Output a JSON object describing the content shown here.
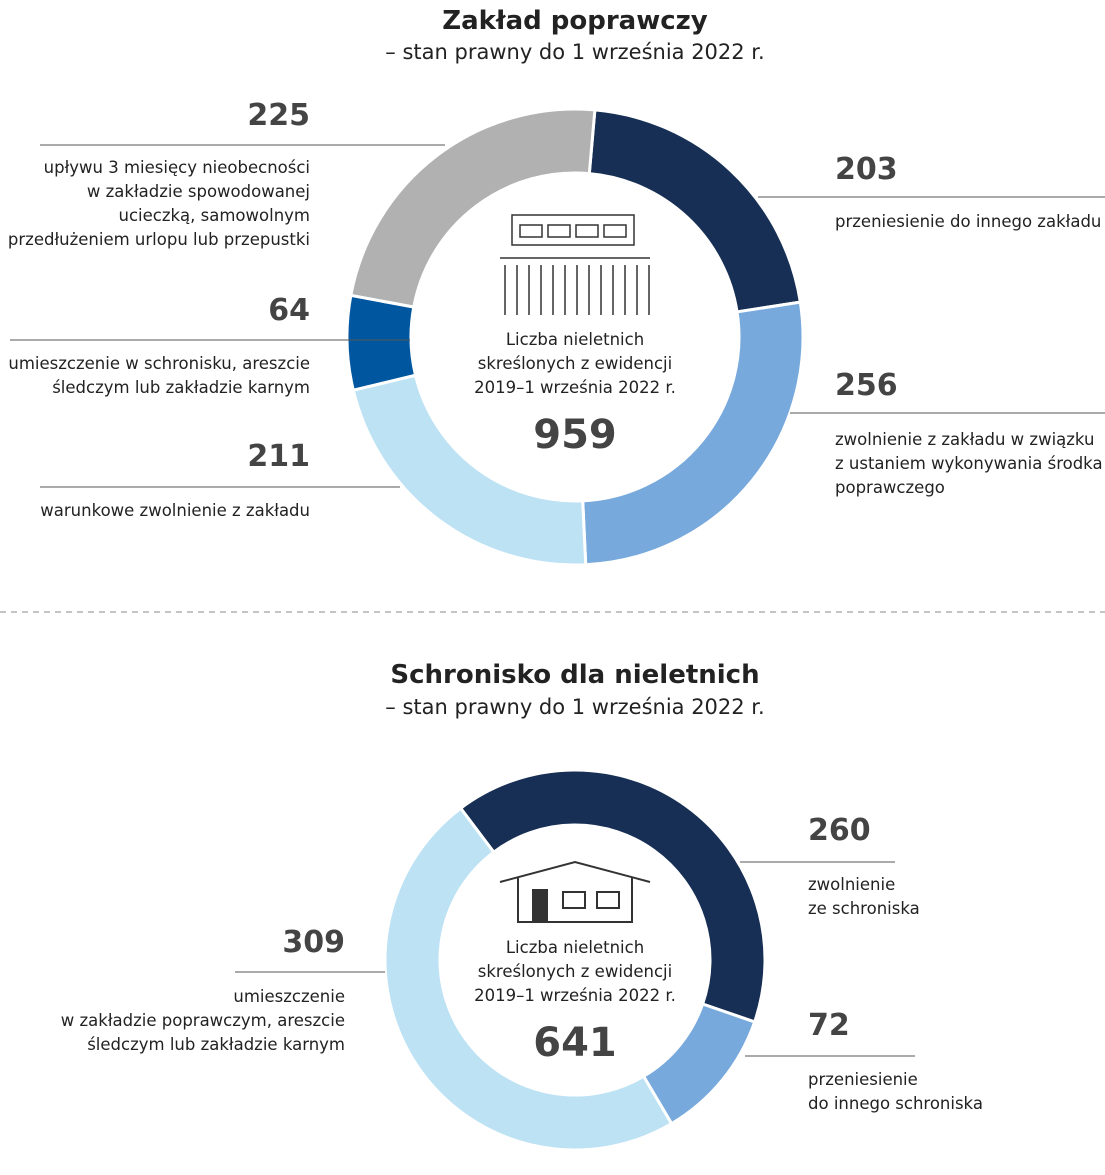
{
  "chart_data": [
    {
      "type": "donut",
      "title": "Zakład poprawczy",
      "subtitle": "– stan prawny do 1 września 2022 r.",
      "center_label": "Liczba nieletnich\nskreślonych z ewidencji\n2019–1 września 2022 r.",
      "total": 959,
      "categories": [
        "przeniesienie do innego zakładu",
        "zwolnienie z zakładu w związku\nz ustaniem wykonywania środka\npoprawczego",
        "warunkowe zwolnienie z zakładu",
        "umieszczenie w schronisku, areszcie\nśledczym lub zakładzie karnym",
        "upływu 3 miesięcy nieobecności\nw zakładzie spowodowanej\nucieczką, samowolnym\nprzedłużeniem urlopu lub przepustki"
      ],
      "values": [
        203,
        256,
        211,
        64,
        225
      ],
      "colors": [
        "#172f55",
        "#78a9dc",
        "#bde2f4",
        "#0057a0",
        "#b1b1b1"
      ]
    },
    {
      "type": "donut",
      "title": "Schronisko dla nieletnich",
      "subtitle": "– stan prawny do 1 września 2022 r.",
      "center_label": "Liczba nieletnich\nskreślonych z ewidencji\n2019–1 września 2022 r.",
      "total": 641,
      "categories": [
        "zwolnienie\nze schroniska",
        "przeniesienie\ndo innego schroniska",
        "umieszczenie\nw zakładzie poprawczym, areszcie\nśledczym lub zakładzie karnym"
      ],
      "values": [
        260,
        72,
        309
      ],
      "colors": [
        "#172f55",
        "#78a9dc",
        "#bde2f4"
      ]
    }
  ]
}
